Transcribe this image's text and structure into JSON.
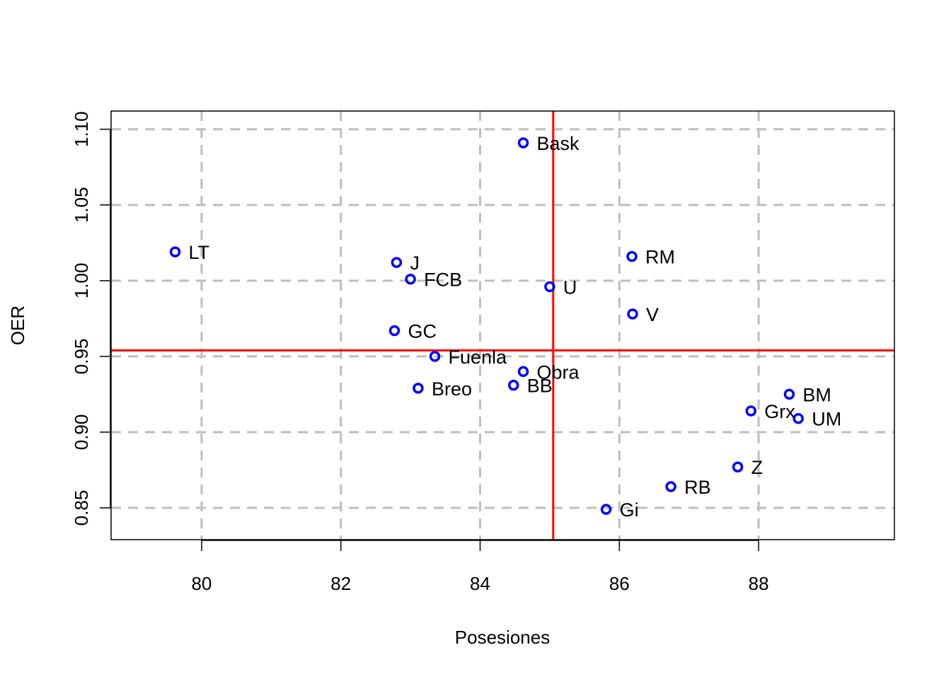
{
  "chart_data": {
    "type": "scatter",
    "xlabel": "Posesiones",
    "ylabel": "OER",
    "xlim": [
      78.7,
      89.95
    ],
    "ylim": [
      0.829,
      1.112
    ],
    "xticks": [
      80,
      82,
      84,
      86,
      88
    ],
    "yticks": [
      0.85,
      0.9,
      0.95,
      1.0,
      1.05,
      1.1
    ],
    "xtick_labels": [
      "80",
      "82",
      "84",
      "86",
      "88"
    ],
    "ytick_labels": [
      "0.85",
      "0.90",
      "0.95",
      "1.00",
      "1.05",
      "1.10"
    ],
    "grid": true,
    "reference_lines": {
      "vertical_x": 85.05,
      "horizontal_y": 0.954,
      "color": "#ff0000"
    },
    "point_color": "#0000ff",
    "grid_color": "#bebebe",
    "points": [
      {
        "label": "Bask",
        "x": 84.62,
        "y": 1.091
      },
      {
        "label": "LT",
        "x": 79.62,
        "y": 1.019
      },
      {
        "label": "J",
        "x": 82.8,
        "y": 1.012
      },
      {
        "label": "FCB",
        "x": 83.0,
        "y": 1.001
      },
      {
        "label": "RM",
        "x": 86.18,
        "y": 1.016
      },
      {
        "label": "U",
        "x": 85.0,
        "y": 0.996
      },
      {
        "label": "V",
        "x": 86.19,
        "y": 0.978
      },
      {
        "label": "GC",
        "x": 82.77,
        "y": 0.967
      },
      {
        "label": "Fuenla",
        "x": 83.35,
        "y": 0.95
      },
      {
        "label": "Obra",
        "x": 84.62,
        "y": 0.94
      },
      {
        "label": "BB",
        "x": 84.48,
        "y": 0.931
      },
      {
        "label": "Breo",
        "x": 83.11,
        "y": 0.929
      },
      {
        "label": "BM",
        "x": 88.44,
        "y": 0.925
      },
      {
        "label": "Grx",
        "x": 87.89,
        "y": 0.914
      },
      {
        "label": "UM",
        "x": 88.57,
        "y": 0.909
      },
      {
        "label": "Z",
        "x": 87.7,
        "y": 0.877
      },
      {
        "label": "RB",
        "x": 86.74,
        "y": 0.864
      },
      {
        "label": "Gi",
        "x": 85.81,
        "y": 0.849
      }
    ]
  }
}
